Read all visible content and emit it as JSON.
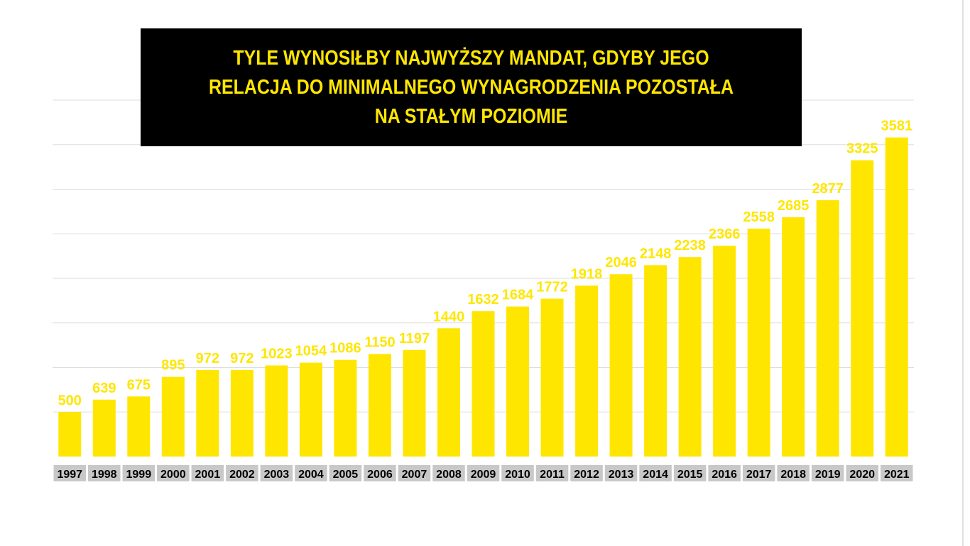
{
  "colors": {
    "bar": "#FFE600",
    "value_label": "#FFE600",
    "title_text": "#FFE600",
    "title_background": "#000000",
    "grid": "#dddddd",
    "category_label_background": "#c8c8c8",
    "category_label_text": "#000000"
  },
  "chart_data": {
    "type": "bar",
    "title": "TYLE WYNOSIŁBY NAJWYŻSZY MANDAT, GDYBY JEGO RELACJA DO MINIMALNEGO WYNAGRODZENIA POZOSTAŁA NA STAŁYM POZIOMIE",
    "categories": [
      "1997",
      "1998",
      "1999",
      "2000",
      "2001",
      "2002",
      "2003",
      "2004",
      "2005",
      "2006",
      "2007",
      "2008",
      "2009",
      "2010",
      "2011",
      "2012",
      "2013",
      "2014",
      "2015",
      "2016",
      "2017",
      "2018",
      "2019",
      "2020",
      "2021"
    ],
    "values": [
      500,
      639,
      675,
      895,
      972,
      972,
      1023,
      1054,
      1086,
      1150,
      1197,
      1440,
      1632,
      1684,
      1772,
      1918,
      2046,
      2148,
      2238,
      2366,
      2558,
      2685,
      2877,
      3325,
      3581
    ],
    "xlabel": "",
    "ylabel": "",
    "ylim": [
      0,
      4000
    ],
    "grid": true,
    "legend": "none",
    "data_labels": true
  }
}
